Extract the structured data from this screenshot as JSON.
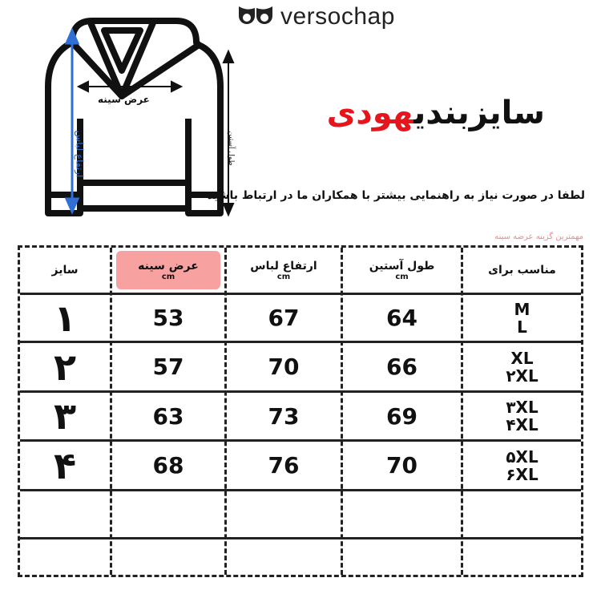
{
  "brand": {
    "name": "versochap",
    "icon": "owl-eyes-logo"
  },
  "title": {
    "main": "سایزبندی",
    "accent": "هودی",
    "accent_color": "#e8141c"
  },
  "subtitle": "لطفا در صورت نیاز به راهنمایی بیشتر با همکاران ما در ارتباط باشید",
  "note": "مهمترین گزینه عرضه سینه",
  "diagram": {
    "chest_width": "عرض سینه",
    "garment_length": "ارتفاع لباس",
    "sleeve_length": "طول آستین",
    "arrow_color": "#2f6fd6"
  },
  "table": {
    "headers": [
      {
        "label": "سایز",
        "unit": ""
      },
      {
        "label": "عرض سینه",
        "unit": "cm",
        "highlight": "#f7a1a1"
      },
      {
        "label": "ارتفاع لباس",
        "unit": "cm"
      },
      {
        "label": "طول آستین",
        "unit": "cm"
      },
      {
        "label": "مناسب برای",
        "unit": ""
      }
    ],
    "rows": [
      {
        "size": "۱",
        "chest": "53",
        "length": "67",
        "sleeve": "64",
        "fit1": "M",
        "fit2": "L"
      },
      {
        "size": "۲",
        "chest": "57",
        "length": "70",
        "sleeve": "66",
        "fit1": "XL",
        "fit2": "۲XL"
      },
      {
        "size": "۳",
        "chest": "63",
        "length": "73",
        "sleeve": "69",
        "fit1": "۳XL",
        "fit2": "۴XL"
      },
      {
        "size": "۴",
        "chest": "68",
        "length": "76",
        "sleeve": "70",
        "fit1": "۵XL",
        "fit2": "۶XL"
      }
    ]
  }
}
